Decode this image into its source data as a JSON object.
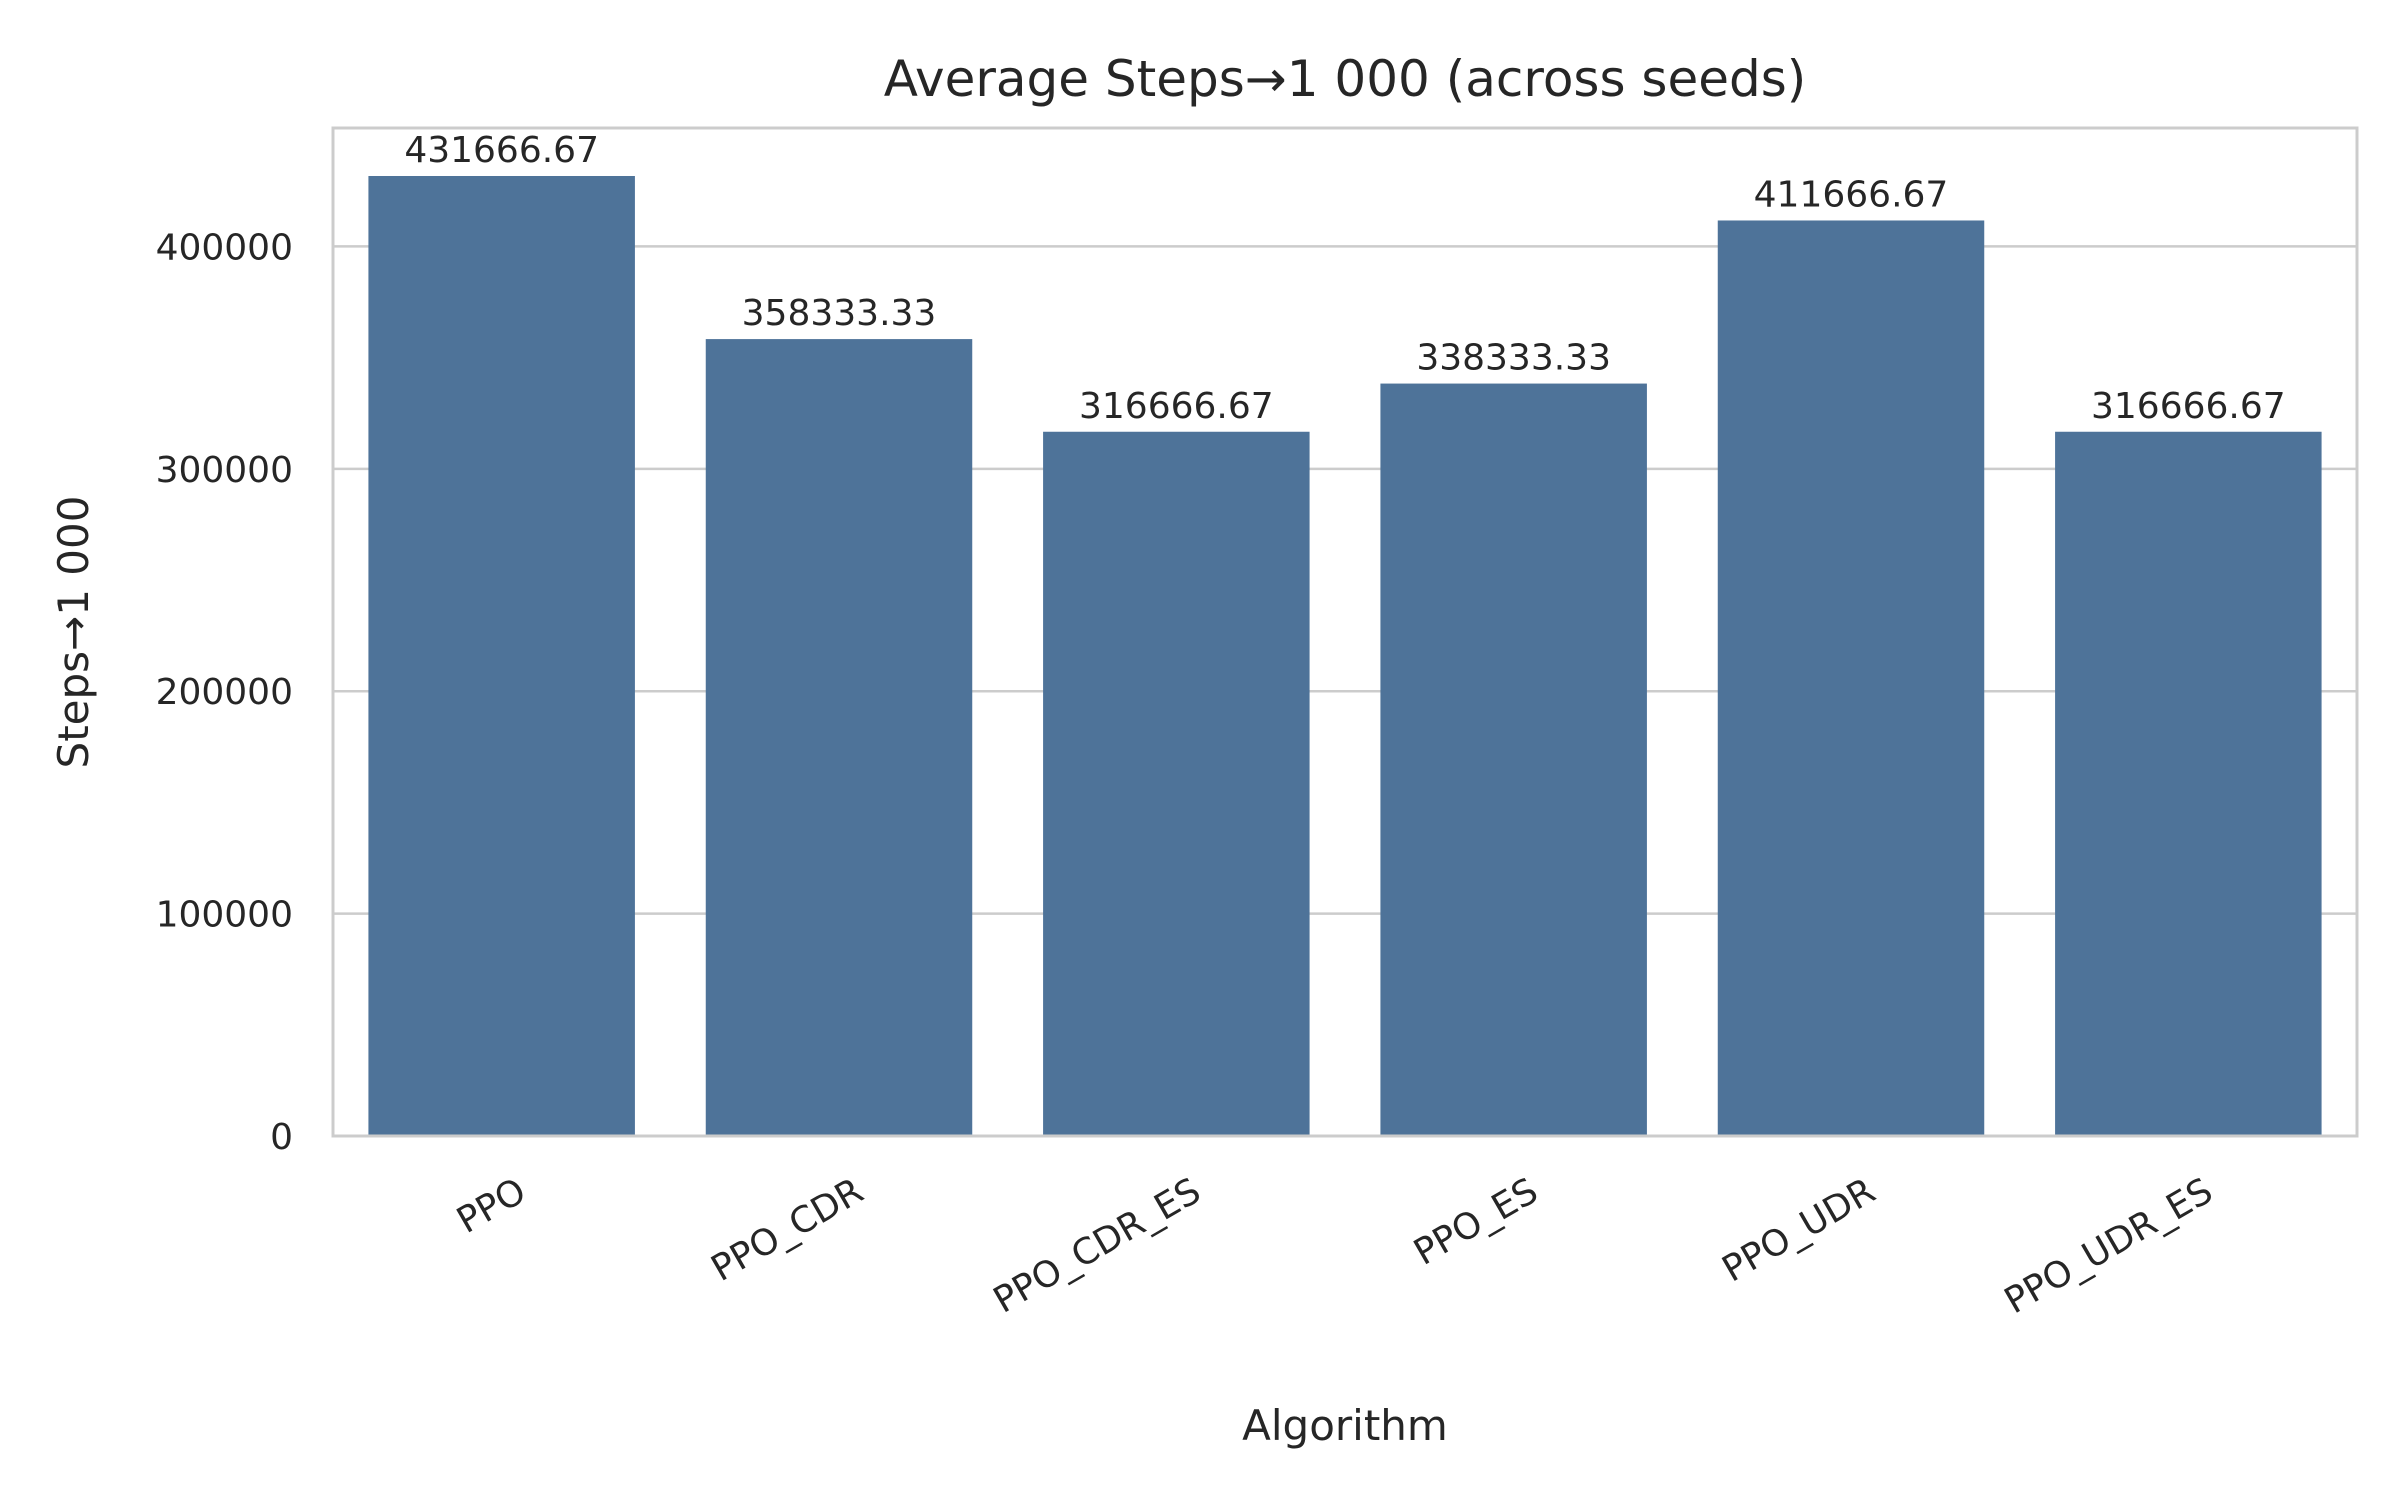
{
  "chart_data": {
    "type": "bar",
    "title": "Average Steps→1 000 (across seeds)",
    "xlabel": "Algorithm",
    "ylabel": "Steps→1 000",
    "categories": [
      "PPO",
      "PPO_CDR",
      "PPO_CDR_ES",
      "PPO_ES",
      "PPO_UDR",
      "PPO_UDR_ES"
    ],
    "values": [
      431666.67,
      358333.33,
      316666.67,
      338333.33,
      411666.67,
      316666.67
    ],
    "data_labels": [
      "431666.67",
      "358333.33",
      "316666.67",
      "338333.33",
      "411666.67",
      "316666.67"
    ],
    "ylim": [
      0,
      453250
    ],
    "yticks": [
      0,
      100000,
      200000,
      300000,
      400000
    ],
    "ytick_labels": [
      "0",
      "100000",
      "200000",
      "300000",
      "400000"
    ],
    "grid": true,
    "legend": "none",
    "bar_color": "#4e7399",
    "xtick_rotation_deg": 30
  }
}
